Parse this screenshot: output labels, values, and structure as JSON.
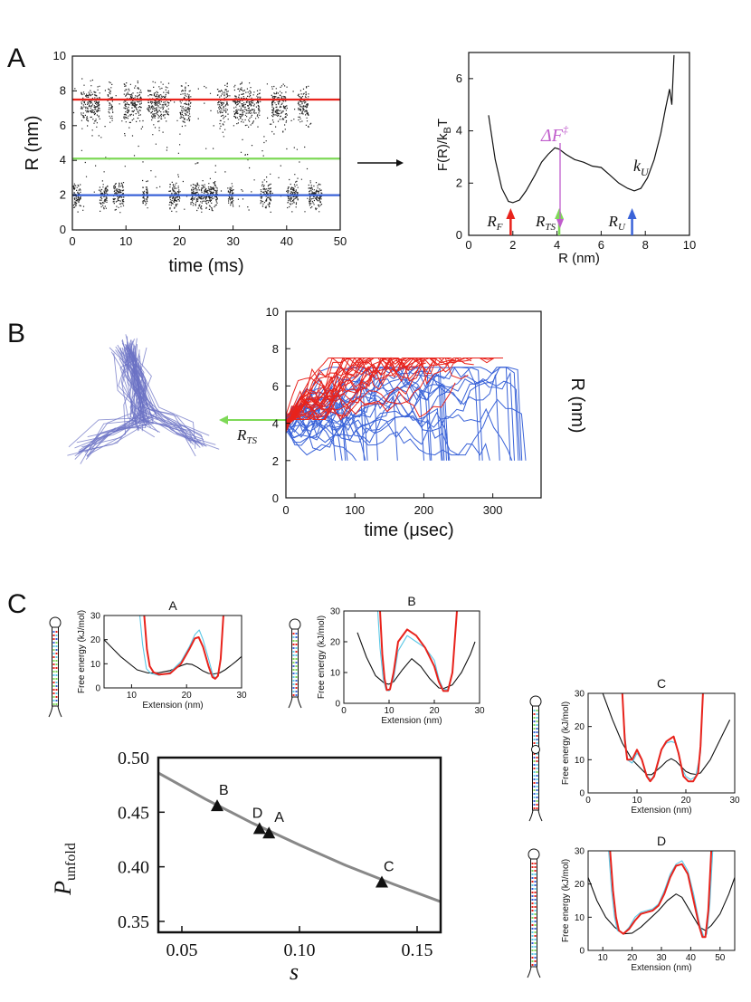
{
  "panel_labels": {
    "a": "A",
    "b": "B",
    "c": "C"
  },
  "colors": {
    "red": "#e8231c",
    "green": "#7ed957",
    "blue": "#3a63d8",
    "purple": "#c05ccc",
    "cyan": "#5bc8e6",
    "navy": "#5a63b8",
    "grey": "#888888",
    "black": "#111111"
  },
  "chart_data": [
    {
      "id": "A-time-series",
      "type": "scatter",
      "xlabel": "time (ms)",
      "ylabel": "R (nm)",
      "xlim": [
        0,
        50
      ],
      "ylim": [
        0,
        10
      ],
      "xticks": [
        "0",
        "10",
        "20",
        "30",
        "40",
        "50"
      ],
      "yticks": [
        "0",
        "2",
        "4",
        "6",
        "8",
        "10"
      ],
      "hlines": [
        {
          "y": 7.5,
          "color": "#e8231c"
        },
        {
          "y": 4.1,
          "color": "#7ed957"
        },
        {
          "y": 2.0,
          "color": "#3a63d8"
        }
      ],
      "segments": [
        [
          0,
          1.5,
          "F"
        ],
        [
          1.5,
          5,
          "U"
        ],
        [
          5,
          6.5,
          "F"
        ],
        [
          6.5,
          7.5,
          "U"
        ],
        [
          7.5,
          9.5,
          "F"
        ],
        [
          9.5,
          13,
          "U"
        ],
        [
          13,
          14,
          "F"
        ],
        [
          14,
          18,
          "U"
        ],
        [
          18,
          20,
          "F"
        ],
        [
          20,
          22,
          "U"
        ],
        [
          22,
          27,
          "F"
        ],
        [
          27,
          29,
          "U"
        ],
        [
          29,
          30,
          "F"
        ],
        [
          30,
          35,
          "U"
        ],
        [
          35,
          37,
          "F"
        ],
        [
          37,
          40,
          "U"
        ],
        [
          40,
          42,
          "F"
        ],
        [
          42,
          44,
          "U"
        ],
        [
          44,
          46.5,
          "F"
        ]
      ]
    },
    {
      "id": "A-free-energy",
      "type": "line",
      "xlabel": "R (nm)",
      "ylabel": "F(R)/k",
      "ylabel_sub": "B",
      "ylabel_end": "T",
      "xlim": [
        0,
        10
      ],
      "ylim": [
        0,
        7
      ],
      "xticks": [
        "0",
        "2",
        "4",
        "6",
        "8",
        "10"
      ],
      "yticks": [
        "0",
        "2",
        "4",
        "6"
      ],
      "x": [
        0.9,
        1.2,
        1.5,
        1.8,
        2.0,
        2.3,
        2.6,
        3.0,
        3.3,
        3.6,
        3.9,
        4.1,
        4.4,
        4.8,
        5.2,
        5.6,
        6.0,
        6.4,
        6.8,
        7.2,
        7.5,
        7.8,
        8.1,
        8.4,
        8.7,
        8.9,
        9.1,
        9.2,
        9.3
      ],
      "y": [
        4.6,
        2.9,
        1.8,
        1.3,
        1.25,
        1.35,
        1.7,
        2.3,
        2.8,
        3.1,
        3.35,
        3.3,
        3.1,
        2.9,
        2.8,
        2.65,
        2.6,
        2.3,
        2.0,
        1.8,
        1.7,
        1.8,
        2.2,
        2.9,
        3.9,
        4.8,
        5.6,
        5.0,
        6.9
      ],
      "arrows": [
        {
          "x": 1.9,
          "label": "R",
          "sub": "F",
          "color": "#e8231c"
        },
        {
          "x": 4.1,
          "label": "R",
          "sub": "TS",
          "color": "#7ed957"
        },
        {
          "x": 7.4,
          "label": "R",
          "sub": "U",
          "color": "#3a63d8"
        }
      ],
      "barrier_label": "ΔF",
      "barrier_sup": "‡",
      "ku_label": "k",
      "ku_sub": "U"
    },
    {
      "id": "B-trajectories",
      "type": "line",
      "xlabel": "time (μsec)",
      "ylabel": "R (nm)",
      "xlim": [
        0,
        370
      ],
      "ylim": [
        0,
        10
      ],
      "xticks": [
        "0",
        "100",
        "200",
        "300"
      ],
      "yticks": [
        "0",
        "2",
        "4",
        "6",
        "8",
        "10"
      ],
      "rts_label": "R",
      "rts_sub": "TS",
      "red_count": 30,
      "blue_count": 30
    },
    {
      "id": "C-pull-A",
      "type": "line",
      "title": "A",
      "xlabel": "Extension (nm)",
      "ylabel": "Free energy (kJ/mol)",
      "xlim": [
        5,
        30
      ],
      "ylim": [
        0,
        30
      ],
      "xticks": [
        "10",
        "20",
        "30"
      ],
      "yticks": [
        "0",
        "10",
        "20",
        "30"
      ],
      "series": [
        {
          "color": "#111111",
          "x": [
            5,
            8,
            11,
            13,
            15,
            17,
            19,
            20,
            21,
            22,
            23,
            24,
            25,
            26,
            27,
            28,
            29,
            30
          ],
          "y": [
            20,
            13,
            7.5,
            6.2,
            6.3,
            7.2,
            9.2,
            10,
            9.7,
            8.5,
            7,
            6,
            5.8,
            6.2,
            7.5,
            9.2,
            11,
            13
          ]
        },
        {
          "color": "#5bc8e6",
          "x": [
            11.5,
            12,
            12.7,
            13.5,
            15,
            17,
            19,
            20.5,
            21.5,
            22.3,
            23,
            24,
            24.7,
            25.2,
            25.7,
            26.2,
            26.7
          ],
          "y": [
            30,
            18,
            8,
            6,
            5.2,
            6.5,
            11,
            17,
            22,
            24,
            20,
            12,
            6,
            4,
            5,
            12,
            30
          ]
        },
        {
          "color": "#e8231c",
          "x": [
            12.3,
            12.8,
            13.3,
            14,
            15,
            17,
            19,
            20.5,
            21.5,
            22.2,
            23,
            24,
            24.7,
            25.2,
            25.7,
            26.2,
            26.7
          ],
          "y": [
            30,
            16,
            9,
            6.5,
            5.5,
            6,
            10,
            16,
            20.5,
            21,
            17,
            9,
            4.5,
            3.8,
            5,
            12,
            30
          ]
        }
      ]
    },
    {
      "id": "C-pull-B",
      "type": "line",
      "title": "B",
      "xlabel": "Extension (nm)",
      "ylabel": "Free energy (kJ/mol)",
      "xlim": [
        0,
        30
      ],
      "ylim": [
        0,
        30
      ],
      "xticks": [
        "0",
        "10",
        "20",
        "30"
      ],
      "yticks": [
        "0",
        "10",
        "20",
        "30"
      ],
      "series": [
        {
          "color": "#111111",
          "x": [
            3,
            5,
            7,
            9,
            10,
            11,
            13,
            15,
            17,
            19,
            21,
            22,
            24,
            26,
            28,
            29
          ],
          "y": [
            23,
            15,
            9,
            6.5,
            6.2,
            7,
            11,
            14.5,
            12,
            8,
            5,
            4.8,
            6,
            10,
            16,
            20
          ]
        },
        {
          "color": "#5bc8e6",
          "x": [
            7.5,
            8,
            8.7,
            9.3,
            10,
            11,
            12,
            14,
            16,
            18,
            20,
            21,
            22,
            23,
            24,
            24.5,
            25
          ],
          "y": [
            30,
            18,
            8,
            4.5,
            4,
            8,
            17,
            22,
            20,
            18,
            14,
            8,
            4.5,
            4.5,
            10,
            20,
            30
          ]
        },
        {
          "color": "#e8231c",
          "x": [
            8,
            8.5,
            9,
            9.5,
            10.2,
            11,
            12,
            14,
            16,
            18,
            20,
            21,
            22,
            23,
            24,
            24.5,
            25
          ],
          "y": [
            30,
            16,
            8,
            4.3,
            4.5,
            10,
            20,
            24,
            22,
            18,
            12,
            7,
            4,
            4,
            10,
            20,
            30
          ]
        }
      ]
    },
    {
      "id": "C-pull-C",
      "type": "line",
      "title": "C",
      "xlabel": "Extension (nm)",
      "ylabel": "Free energy (kJ/mol)",
      "xlim": [
        0,
        30
      ],
      "ylim": [
        0,
        30
      ],
      "xticks": [
        "0",
        "10",
        "20",
        "30"
      ],
      "yticks": [
        "0",
        "10",
        "20",
        "30"
      ],
      "series": [
        {
          "color": "#111111",
          "x": [
            3,
            5,
            7,
            9,
            11,
            12,
            13,
            15,
            16,
            17,
            18,
            19,
            20,
            21,
            22,
            23,
            25,
            27,
            29
          ],
          "y": [
            30,
            22,
            15,
            10,
            7,
            5.5,
            5.5,
            8,
            9.5,
            10.3,
            9.5,
            8,
            6.5,
            5.8,
            5.6,
            6,
            10,
            16,
            22
          ]
        },
        {
          "color": "#5bc8e6",
          "x": [
            7,
            7.5,
            8,
            9,
            10,
            11,
            12,
            13,
            14,
            15,
            16,
            17,
            18,
            19,
            20,
            21,
            22,
            23,
            23.5
          ],
          "y": [
            30,
            18,
            10,
            9,
            12,
            10,
            5,
            4,
            7,
            13,
            15,
            15.5,
            15,
            8,
            5,
            4,
            5,
            12,
            30
          ]
        },
        {
          "color": "#e8231c",
          "x": [
            7,
            7.5,
            8,
            9,
            10,
            11,
            12,
            12.7,
            13.5,
            15,
            16,
            17,
            17.5,
            18.5,
            19.5,
            20.5,
            21.5,
            22.5,
            23,
            23.5
          ],
          "y": [
            30,
            16,
            10,
            10,
            13,
            10,
            5,
            3.5,
            5,
            13,
            15.5,
            16.5,
            17,
            12,
            5,
            3.5,
            3.5,
            6,
            14,
            30
          ]
        }
      ]
    },
    {
      "id": "C-pull-D",
      "type": "line",
      "title": "D",
      "xlabel": "Extension (nm)",
      "ylabel": "Free energy (kJ/mol)",
      "xlim": [
        5,
        55
      ],
      "ylim": [
        0,
        30
      ],
      "xticks": [
        "10",
        "20",
        "30",
        "40",
        "50"
      ],
      "yticks": [
        "0",
        "10",
        "20",
        "30"
      ],
      "series": [
        {
          "color": "#111111",
          "x": [
            5,
            8,
            11,
            14,
            17,
            20,
            23,
            26,
            29,
            32,
            35,
            37,
            39,
            41,
            43,
            45,
            47,
            50,
            53,
            55
          ],
          "y": [
            22,
            15,
            10,
            7,
            5,
            5.2,
            7,
            9.5,
            12,
            15,
            17,
            16,
            13,
            10,
            7,
            6,
            7.5,
            11,
            17,
            22
          ]
        },
        {
          "color": "#5bc8e6",
          "x": [
            12,
            13,
            14,
            15,
            17,
            19,
            21,
            23,
            25,
            27,
            29,
            31,
            33,
            35,
            37,
            39,
            41,
            43,
            44.5,
            45.5,
            46.5,
            47.5
          ],
          "y": [
            30,
            18,
            10,
            6,
            5,
            7,
            10,
            11.5,
            12,
            12.5,
            14,
            18,
            23,
            26,
            27,
            24,
            17,
            8,
            4,
            5,
            14,
            30
          ]
        },
        {
          "color": "#e8231c",
          "x": [
            12.5,
            13.5,
            14.5,
            15.5,
            17,
            19,
            21,
            23,
            25,
            27,
            29,
            31,
            33,
            35,
            37,
            39,
            41,
            43,
            44,
            45,
            46,
            47
          ],
          "y": [
            30,
            18,
            10,
            6,
            5,
            6.5,
            9,
            11,
            11.5,
            12,
            13.5,
            17,
            22,
            25.5,
            26,
            23,
            15,
            7,
            4,
            4,
            12,
            30
          ]
        }
      ]
    },
    {
      "id": "C-punfold",
      "type": "scatter",
      "xlabel": "s",
      "ylabel": "P",
      "ylabel_sub": "unfold",
      "xlim": [
        0.04,
        0.16
      ],
      "ylim": [
        0.34,
        0.5
      ],
      "xticks": [
        "0.05",
        "0.10",
        "0.15"
      ],
      "yticks": [
        "0.35",
        "0.40",
        "0.45",
        "0.50"
      ],
      "points": [
        {
          "label": "B",
          "x": 0.065,
          "y": 0.456
        },
        {
          "label": "D",
          "x": 0.083,
          "y": 0.435
        },
        {
          "label": "A",
          "x": 0.087,
          "y": 0.431
        },
        {
          "label": "C",
          "x": 0.135,
          "y": 0.386
        }
      ],
      "fit": {
        "x": [
          0.04,
          0.06,
          0.08,
          0.1,
          0.12,
          0.14,
          0.16
        ],
        "y": [
          0.486,
          0.462,
          0.44,
          0.42,
          0.401,
          0.384,
          0.368
        ],
        "color": "#888888"
      }
    }
  ]
}
